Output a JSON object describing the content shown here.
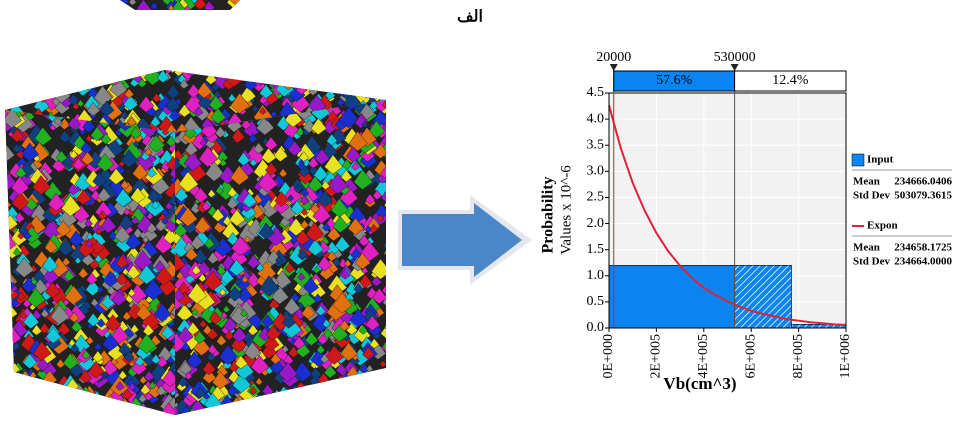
{
  "caption": "الف",
  "chart_data": {
    "type": "histogram",
    "ylabel": "Probability",
    "ylabel2": "Values x 10^-6",
    "xlabel": "Vb(cm^3)",
    "bins": [
      0,
      770000,
      1000000
    ],
    "values": [
      1.2,
      0.07
    ],
    "color": "#0a84f0",
    "fit": {
      "name": "Expon",
      "color": "#e0203c",
      "x": [
        0,
        50000,
        100000,
        150000,
        200000,
        250000,
        300000,
        350000,
        400000,
        450000,
        500000,
        550000,
        600000,
        650000,
        700000,
        750000,
        800000,
        850000,
        900000,
        950000,
        1000000
      ],
      "values": [
        4.26,
        3.44,
        2.78,
        2.25,
        1.82,
        1.47,
        1.19,
        0.96,
        0.77,
        0.63,
        0.51,
        0.41,
        0.33,
        0.27,
        0.22,
        0.17,
        0.14,
        0.11,
        0.09,
        0.07,
        0.06
      ]
    },
    "xlim": [
      0,
      1000000
    ],
    "xticks": [
      {
        "value": 0,
        "label": "0E+000"
      },
      {
        "value": 200000,
        "label": "2E+005"
      },
      {
        "value": 400000,
        "label": "4E+005"
      },
      {
        "value": 600000,
        "label": "6E+005"
      },
      {
        "value": 800000,
        "label": "8E+005"
      },
      {
        "value": 1000000,
        "label": "1E+006"
      }
    ],
    "ylim": [
      0,
      4.5
    ],
    "yticks": [
      {
        "value": 0,
        "label": "0.0"
      },
      0.5,
      {
        "value": 1,
        "label": "1.0"
      },
      1.5,
      {
        "value": 2,
        "label": "2.0"
      },
      2.5,
      {
        "value": 3,
        "label": "3.0"
      },
      3.5,
      {
        "value": 4,
        "label": "4.0"
      },
      4.5
    ],
    "grid": true,
    "delimiters": [
      20000,
      530000
    ],
    "region_values": [
      57.6,
      12.4
    ],
    "region_labels": [
      "57.6%",
      "12.4%"
    ],
    "legend": [
      {
        "name": "Input",
        "rows": [
          [
            "Mean",
            "234666.0406"
          ],
          [
            "Std Dev",
            "503079.3615"
          ]
        ]
      },
      {
        "name": "Expon",
        "rows": [
          [
            "Mean",
            "234658.1725"
          ],
          [
            "Std Dev",
            "234664.0000"
          ]
        ]
      }
    ]
  }
}
